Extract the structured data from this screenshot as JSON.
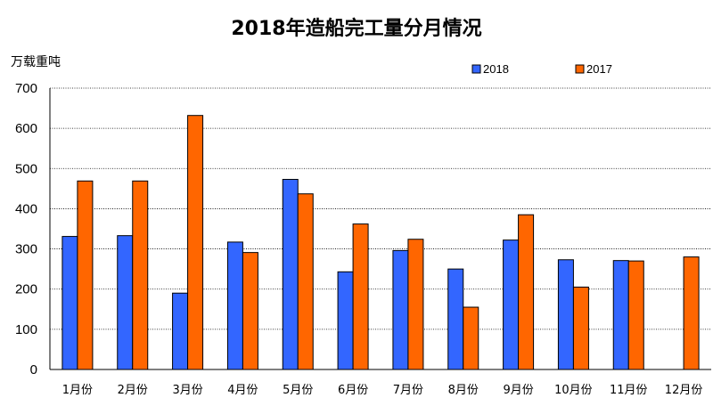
{
  "chart_data": {
    "type": "bar",
    "title": "2018年造船完工量分月情况",
    "ylabel": "万载重吨",
    "xlabel": "",
    "ylim": [
      0,
      700
    ],
    "yticks": [
      0,
      100,
      200,
      300,
      400,
      500,
      600,
      700
    ],
    "grid": true,
    "legend_position": "top-right",
    "categories": [
      "1月份",
      "2月份",
      "3月份",
      "4月份",
      "5月份",
      "6月份",
      "7月份",
      "8月份",
      "9月份",
      "10月份",
      "11月份",
      "12月份"
    ],
    "series": [
      {
        "name": "2018",
        "color": "#3366FF",
        "values": [
          331,
          333,
          190,
          317,
          473,
          243,
          296,
          250,
          322,
          273,
          271,
          null
        ]
      },
      {
        "name": "2017",
        "color": "#FF6600",
        "values": [
          469,
          469,
          632,
          291,
          437,
          362,
          324,
          155,
          385,
          205,
          270,
          280
        ]
      }
    ]
  }
}
